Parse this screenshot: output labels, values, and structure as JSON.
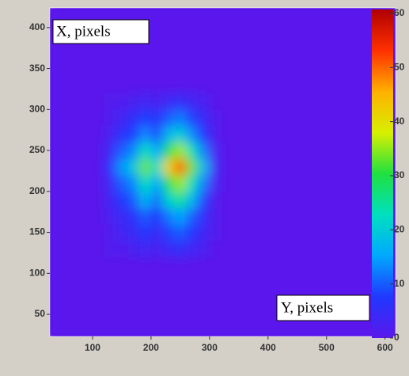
{
  "chart_data": {
    "type": "heatmap",
    "annotations": [
      "X, pixels",
      "Y, pixels"
    ],
    "xbins": [
      27,
      120,
      140,
      160,
      180,
      200,
      220,
      240,
      260,
      280,
      300,
      320,
      618
    ],
    "ybins": [
      23,
      120,
      140,
      160,
      180,
      200,
      220,
      240,
      260,
      280,
      300,
      320,
      424
    ],
    "z": [
      [
        0,
        0,
        0,
        0,
        0,
        0,
        0,
        0,
        0,
        0,
        0,
        0
      ],
      [
        0,
        1,
        1,
        2,
        3,
        2,
        4,
        5,
        3,
        2,
        0,
        0
      ],
      [
        0,
        1,
        3,
        4,
        7,
        4,
        8,
        10,
        7,
        3,
        1,
        0
      ],
      [
        0,
        2,
        4,
        6,
        10,
        7,
        12,
        15,
        10,
        5,
        1,
        0
      ],
      [
        0,
        3,
        7,
        10,
        17,
        11,
        21,
        25,
        17,
        8,
        1,
        0
      ],
      [
        0,
        4,
        10,
        13,
        23,
        15,
        29,
        35,
        23,
        12,
        2,
        0
      ],
      [
        0,
        6,
        14,
        19,
        33,
        22,
        41,
        50,
        33,
        17,
        3,
        0
      ],
      [
        0,
        4,
        10,
        13,
        23,
        15,
        29,
        35,
        23,
        12,
        2,
        0
      ],
      [
        0,
        2,
        6,
        8,
        13,
        9,
        17,
        20,
        13,
        7,
        1,
        0
      ],
      [
        0,
        1,
        3,
        5,
        8,
        6,
        10,
        12,
        8,
        4,
        1,
        0
      ],
      [
        0,
        1,
        1,
        2,
        3,
        2,
        4,
        5,
        3,
        2,
        0,
        0
      ],
      [
        0,
        0,
        0,
        0,
        0,
        0,
        0,
        0,
        0,
        0,
        0,
        0
      ]
    ],
    "xlim": [
      27,
      618
    ],
    "xticks": [
      100,
      200,
      300,
      400,
      500,
      600
    ],
    "ylim": [
      23,
      424
    ],
    "yticks": [
      50,
      100,
      150,
      200,
      250,
      300,
      350,
      400
    ],
    "zlim": [
      0,
      60
    ],
    "zticks": [
      0,
      10,
      20,
      30,
      40,
      50,
      60
    ],
    "colorscale": [
      "#5a18ec",
      "#2038ff",
      "#00a8ff",
      "#00e0c0",
      "#20e040",
      "#d8f000",
      "#ffb000",
      "#ff3000",
      "#b00000"
    ]
  }
}
